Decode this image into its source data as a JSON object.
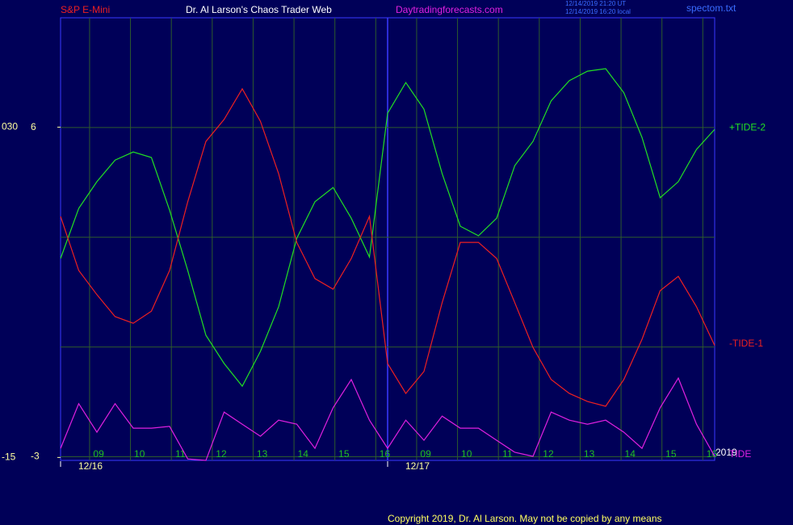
{
  "header": {
    "instrument": "S&P E-Mini",
    "title": "Dr. Al Larson's Chaos Trader Web",
    "site": "Daytradingforecasts.com",
    "timestamps": [
      "12/14/2019 21:20 UT",
      "12/14/2019 16:20 local"
    ],
    "file": "spectom.txt"
  },
  "footer": {
    "copyright": "Copyright 2019, Dr. Al Larson. May not be copied by any means",
    "year": "2019"
  },
  "chart_data": {
    "type": "line",
    "ylim": [
      -3.1,
      9
    ],
    "yticks": [
      -3,
      6
    ],
    "ygrid": [
      0,
      3
    ],
    "y2lim": [
      -15.4,
      44.9
    ],
    "y2ticks": [
      -15,
      {
        "value": 30,
        "label": "030"
      }
    ],
    "x_labels": [
      "09",
      "10",
      "11",
      "12",
      "13",
      "14",
      "15",
      "16",
      "09",
      "10",
      "11",
      "12",
      "13",
      "14",
      "15",
      "16"
    ],
    "date_labels": [
      "12/16",
      "12/17"
    ],
    "grid": true,
    "series": [
      {
        "name": "+TIDE-2",
        "color": "#22e022",
        "values": [
          2.42,
          3.79,
          4.52,
          5.11,
          5.33,
          5.18,
          3.74,
          2.09,
          0.32,
          -0.45,
          -1.07,
          -0.12,
          1.1,
          2.97,
          3.97,
          4.36,
          3.52,
          2.46,
          6.39,
          7.23,
          6.5,
          4.74,
          3.3,
          3.04,
          3.52,
          4.96,
          5.62,
          6.73,
          7.28,
          7.54,
          7.61,
          6.95,
          5.73,
          4.08,
          4.52,
          5.4,
          5.95
        ]
      },
      {
        "name": "-TIDE-1",
        "color": "#ee2020",
        "values": [
          3.57,
          2.09,
          1.43,
          0.83,
          0.65,
          0.98,
          2.09,
          3.97,
          5.62,
          6.22,
          7.06,
          6.17,
          4.74,
          2.86,
          1.87,
          1.58,
          2.42,
          3.57,
          -0.45,
          -1.27,
          -0.67,
          1.21,
          2.86,
          2.86,
          2.42,
          1.21,
          -0.01,
          -0.89,
          -1.27,
          -1.49,
          -1.62,
          -0.89,
          0.21,
          1.54,
          1.93,
          1.1,
          0.04
        ]
      },
      {
        "name": "TIDE",
        "color": "#e020e0",
        "values": [
          -2.77,
          -1.55,
          -2.33,
          -1.55,
          -2.22,
          -2.22,
          -2.17,
          -3.06,
          -3.1,
          -1.78,
          -2.11,
          -2.44,
          -2.0,
          -2.11,
          -2.77,
          -1.66,
          -0.89,
          -2.0,
          -2.77,
          -2.0,
          -2.55,
          -1.89,
          -2.22,
          -2.22,
          -2.55,
          -2.88,
          -2.99,
          -1.78,
          -2.0,
          -2.11,
          -2.0,
          -2.33,
          -2.77,
          -1.66,
          -0.85,
          -2.11,
          -2.99
        ]
      }
    ]
  }
}
